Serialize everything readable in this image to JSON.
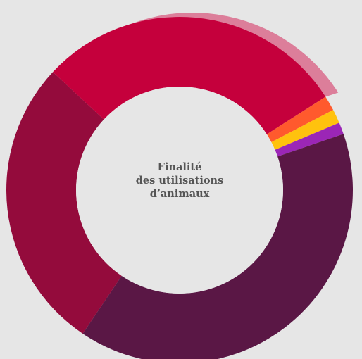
{
  "chart_data": {
    "type": "pie",
    "variant": "donut",
    "title_lines": [
      "Finalité",
      "des utilisations",
      "d’animaux"
    ],
    "slices": [
      {
        "value": 27.5,
        "color": "#940b3c"
      },
      {
        "value": 29.0,
        "color": "#c5003c"
      },
      {
        "value": 1.4,
        "color": "#ff5a2d"
      },
      {
        "value": 1.3,
        "color": "#ffc20e"
      },
      {
        "value": 1.1,
        "color": "#9b26b6"
      },
      {
        "value": 39.7,
        "color": "#5a1745"
      }
    ],
    "highlighted_slice": 1,
    "highlight_color": "#d96b8c",
    "legend": "none"
  }
}
